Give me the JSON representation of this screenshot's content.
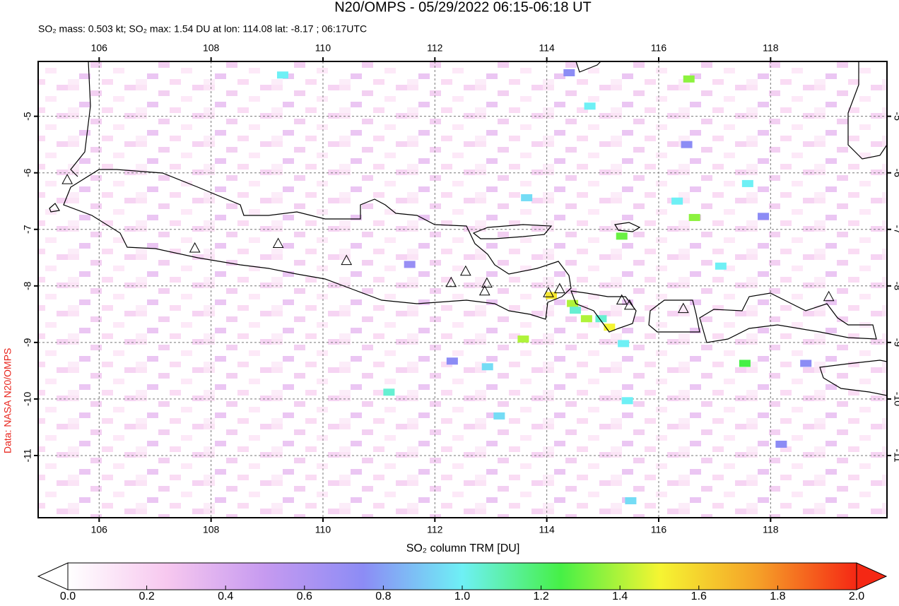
{
  "chart_data": {
    "type": "map",
    "title": "N20/OMPS - 05/29/2022 06:15-06:18 UT",
    "subtitle": "SO₂ mass: 0.503 kt; SO₂ max: 1.54 DU at lon: 114.08 lat: -8.17 ; 06:17UTC",
    "credit": "Data: NASA N20/OMPS",
    "xlim": [
      104.91,
      120.08
    ],
    "ylim": [
      -12.1,
      -4.03
    ],
    "xticks": [
      106,
      108,
      110,
      112,
      114,
      116,
      118
    ],
    "yticks": [
      -5,
      -6,
      -7,
      -8,
      -9,
      -10,
      -11
    ],
    "grid": true,
    "pixels": {
      "lon": [
        116.54,
        116.64,
        117.59,
        116.33,
        115.34,
        117.11,
        117.54,
        113.58,
        114.46,
        114.71,
        114.51,
        114.97,
        115.12,
        114.08,
        115.37,
        115.44,
        115.5,
        114.77,
        109.28,
        113.64,
        112.94,
        111.18,
        113.15,
        114.4,
        118.19,
        117.87,
        118.63,
        112.31,
        116.5,
        111.55
      ],
      "lat": [
        -4.34,
        -6.79,
        -6.19,
        -6.5,
        -7.12,
        -7.65,
        -9.37,
        -8.94,
        -8.31,
        -8.58,
        -8.43,
        -8.58,
        -8.73,
        -8.17,
        -9.02,
        -10.03,
        -11.8,
        -4.82,
        -4.27,
        -6.44,
        -9.43,
        -9.88,
        -10.3,
        -4.23,
        -10.8,
        -6.77,
        -9.37,
        -9.33,
        -5.5,
        -7.62
      ],
      "values": [
        1.35,
        1.35,
        1.0,
        1.0,
        1.3,
        1.0,
        1.25,
        1.4,
        1.4,
        1.4,
        1.05,
        1.05,
        1.5,
        1.54,
        1.0,
        1.0,
        0.95,
        1.0,
        1.0,
        0.95,
        0.95,
        1.05,
        0.95,
        0.75,
        0.75,
        0.75,
        0.75,
        0.75,
        0.75,
        0.7
      ]
    },
    "volcanoes": {
      "lon": [
        105.43,
        107.71,
        109.2,
        110.42,
        112.29,
        112.55,
        112.93,
        112.89,
        114.03,
        114.23,
        115.34,
        115.48,
        116.44,
        119.04
      ],
      "lat": [
        -6.13,
        -7.34,
        -7.26,
        -7.56,
        -7.95,
        -7.75,
        -7.96,
        -8.1,
        -8.13,
        -8.06,
        -8.26,
        -8.35,
        -8.41,
        -8.2
      ]
    },
    "colorbar": {
      "label": "SO₂ column TRM [DU]",
      "clim": [
        0,
        2
      ],
      "colors": [
        "#ffffff",
        "#f7c8ef",
        "#c69af0",
        "#8c8cf5",
        "#6ef0f5",
        "#46f046",
        "#f5f532",
        "#f5a028",
        "#f52814"
      ],
      "ticks": [
        {
          "value": 0,
          "label": "0.0"
        },
        {
          "value": 0.2,
          "label": "0.2"
        },
        {
          "value": 0.4,
          "label": "0.4"
        },
        {
          "value": 0.6,
          "label": "0.6"
        },
        {
          "value": 0.8,
          "label": "0.8"
        },
        {
          "value": 1.0,
          "label": "1.0"
        },
        {
          "value": 1.2,
          "label": "1.2"
        },
        {
          "value": 1.4,
          "label": "1.4"
        },
        {
          "value": 1.6,
          "label": "1.6"
        },
        {
          "value": 1.8,
          "label": "1.8"
        },
        {
          "value": 2.0,
          "label": "2.0"
        }
      ]
    }
  }
}
